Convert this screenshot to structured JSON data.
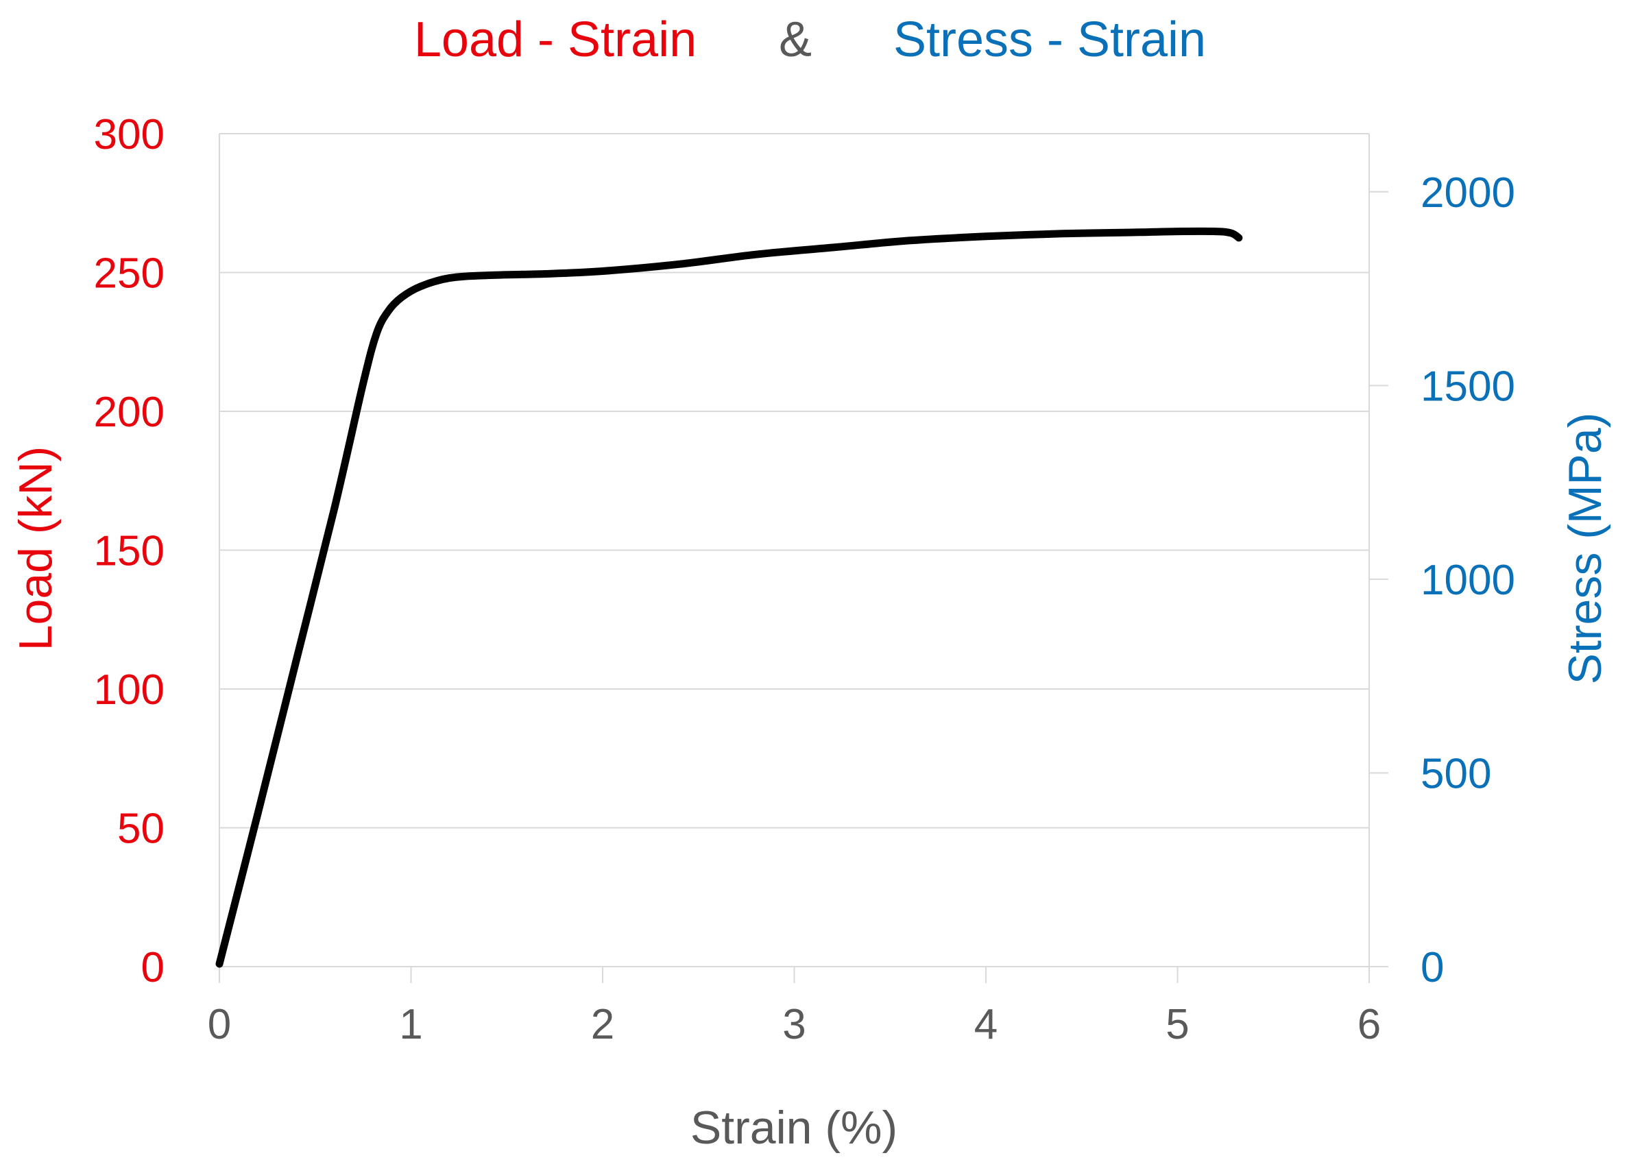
{
  "colors": {
    "load": "#e8040c",
    "stress": "#0a70b8",
    "neutral": "#595959",
    "grid": "#d9d9d9",
    "curve": "#000000"
  },
  "chart_data": {
    "type": "line",
    "title": {
      "part1": "Load - Strain",
      "separator": "&",
      "part2": "Stress - Strain"
    },
    "xlabel": "Strain (%)",
    "ylabel_left": "Load (kN)",
    "ylabel_right": "Stress (MPa)",
    "xlim": [
      0,
      6
    ],
    "ylim_left": [
      0,
      300
    ],
    "ylim_right": [
      0,
      2150
    ],
    "x_ticks": [
      "0",
      "1",
      "2",
      "3",
      "4",
      "5",
      "6"
    ],
    "y_ticks_left": [
      "0",
      "50",
      "100",
      "150",
      "200",
      "250",
      "300"
    ],
    "y_ticks_right": [
      "0",
      "500",
      "1000",
      "1500",
      "2000"
    ],
    "grid": true,
    "series": [
      {
        "x": [
          0,
          0.2,
          0.4,
          0.6,
          0.75,
          0.82,
          0.88,
          0.95,
          1.05,
          1.2,
          1.4,
          1.7,
          2.0,
          2.4,
          2.8,
          3.2,
          3.6,
          4.0,
          4.4,
          4.8,
          5.0,
          5.2,
          5.28,
          5.32
        ],
        "y": [
          1,
          55,
          110,
          165,
          210,
          228,
          236,
          241,
          245,
          248,
          249,
          249.5,
          250.5,
          253,
          256.5,
          259,
          261.5,
          263,
          264,
          264.5,
          264.8,
          264.8,
          264.2,
          262.5
        ]
      }
    ]
  }
}
